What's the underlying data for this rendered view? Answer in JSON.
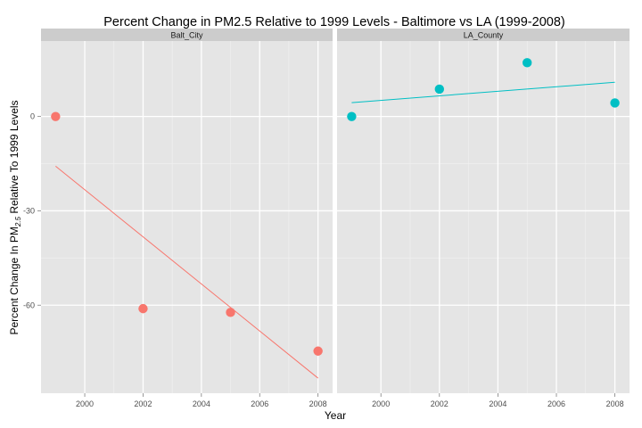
{
  "chart_data": {
    "type": "scatter",
    "title": "Percent Change in PM2.5 Relative to 1999 Levels - Baltimore vs LA (1999-2008)",
    "xlabel": "Year",
    "ylabel_prefix": "Percent Change In PM",
    "ylabel_subscript": "2.5",
    "ylabel_suffix": " Relative To 1999 Levels",
    "x_ticks": [
      2000,
      2002,
      2004,
      2006,
      2008
    ],
    "y_ticks": [
      0,
      -30,
      -60
    ],
    "xlim": [
      1998.5,
      2008.5
    ],
    "ylim": [
      -88,
      24
    ],
    "grid": true,
    "panels": [
      {
        "name": "Balt_City",
        "color": "#F8766D",
        "x": [
          1999,
          2002,
          2005,
          2008
        ],
        "y": [
          0,
          -61.1,
          -62.3,
          -74.6
        ],
        "trend": {
          "x": [
            1999,
            2008
          ],
          "y": [
            -15.8,
            -83.2
          ]
        }
      },
      {
        "name": "LA_County",
        "color": "#00BFC4",
        "x": [
          1999,
          2002,
          2005,
          2008
        ],
        "y": [
          0,
          8.7,
          17.1,
          4.3
        ],
        "trend": {
          "x": [
            1999,
            2008
          ],
          "y": [
            4.4,
            10.9
          ]
        }
      }
    ]
  }
}
